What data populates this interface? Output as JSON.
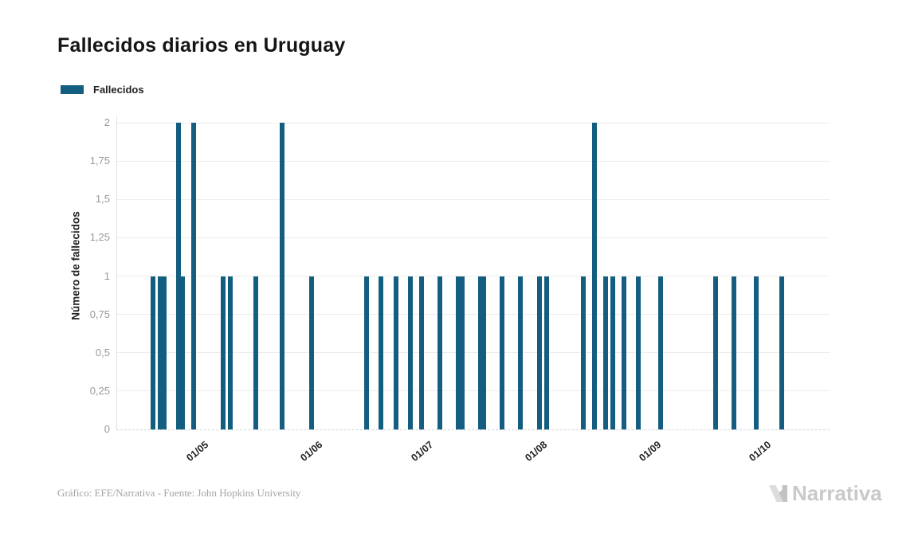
{
  "header": {
    "title": "Fallecidos diarios en Uruguay"
  },
  "legend": {
    "items": [
      {
        "label": "Fallecidos",
        "color": "#135e80"
      }
    ]
  },
  "chart_data": {
    "type": "bar",
    "title": "Fallecidos diarios en Uruguay",
    "xlabel": "",
    "ylabel": "Número de fallecidos",
    "ylim": [
      0,
      2
    ],
    "grid": "horizontal",
    "x_domain": [
      "2020-04-09",
      "2020-10-20"
    ],
    "y_ticks": [
      {
        "label": "0",
        "value": 0
      },
      {
        "label": "0,25",
        "value": 0.25
      },
      {
        "label": "0,5",
        "value": 0.5
      },
      {
        "label": "0,75",
        "value": 0.75
      },
      {
        "label": "1",
        "value": 1
      },
      {
        "label": "1,25",
        "value": 1.25
      },
      {
        "label": "1,5",
        "value": 1.5
      },
      {
        "label": "1,75",
        "value": 1.75
      },
      {
        "label": "2",
        "value": 2
      }
    ],
    "x_ticks": [
      {
        "label": "01/05",
        "date": "2020-05-01"
      },
      {
        "label": "01/06",
        "date": "2020-06-01"
      },
      {
        "label": "01/07",
        "date": "2020-07-01"
      },
      {
        "label": "01/08",
        "date": "2020-08-01"
      },
      {
        "label": "01/09",
        "date": "2020-09-01"
      },
      {
        "label": "01/10",
        "date": "2020-10-01"
      }
    ],
    "series": [
      {
        "name": "Fallecidos",
        "color": "#135e80",
        "points": [
          {
            "date": "2020-04-19",
            "value": 1
          },
          {
            "date": "2020-04-21",
            "value": 1
          },
          {
            "date": "2020-04-22",
            "value": 1
          },
          {
            "date": "2020-04-26",
            "value": 2
          },
          {
            "date": "2020-04-27",
            "value": 1
          },
          {
            "date": "2020-04-30",
            "value": 2
          },
          {
            "date": "2020-05-08",
            "value": 1
          },
          {
            "date": "2020-05-10",
            "value": 1
          },
          {
            "date": "2020-05-17",
            "value": 1
          },
          {
            "date": "2020-05-24",
            "value": 2
          },
          {
            "date": "2020-06-01",
            "value": 1
          },
          {
            "date": "2020-06-16",
            "value": 1
          },
          {
            "date": "2020-06-20",
            "value": 1
          },
          {
            "date": "2020-06-24",
            "value": 1
          },
          {
            "date": "2020-06-28",
            "value": 1
          },
          {
            "date": "2020-07-01",
            "value": 1
          },
          {
            "date": "2020-07-06",
            "value": 1
          },
          {
            "date": "2020-07-11",
            "value": 1
          },
          {
            "date": "2020-07-12",
            "value": 1
          },
          {
            "date": "2020-07-17",
            "value": 1
          },
          {
            "date": "2020-07-18",
            "value": 1
          },
          {
            "date": "2020-07-23",
            "value": 1
          },
          {
            "date": "2020-07-28",
            "value": 1
          },
          {
            "date": "2020-08-02",
            "value": 1
          },
          {
            "date": "2020-08-04",
            "value": 1
          },
          {
            "date": "2020-08-14",
            "value": 1
          },
          {
            "date": "2020-08-17",
            "value": 2
          },
          {
            "date": "2020-08-20",
            "value": 1
          },
          {
            "date": "2020-08-22",
            "value": 1
          },
          {
            "date": "2020-08-25",
            "value": 1
          },
          {
            "date": "2020-08-29",
            "value": 1
          },
          {
            "date": "2020-09-04",
            "value": 1
          },
          {
            "date": "2020-09-19",
            "value": 1
          },
          {
            "date": "2020-09-24",
            "value": 1
          },
          {
            "date": "2020-09-30",
            "value": 1
          },
          {
            "date": "2020-10-07",
            "value": 1
          }
        ]
      }
    ]
  },
  "footer": {
    "credit": "Gráfico: EFE/Narrativa - Fuente: John Hopkins University",
    "brand": "Narrativa"
  }
}
